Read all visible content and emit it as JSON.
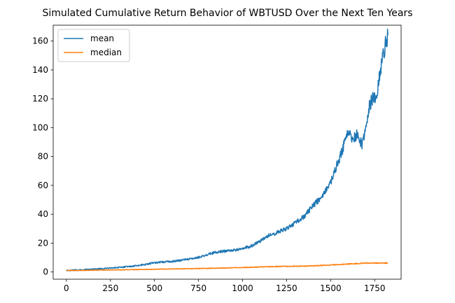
{
  "chart_data": {
    "type": "line",
    "title": "Simulated Cumulative Return Behavior of WBTUSD Over the Next Ten Years",
    "xlabel": "",
    "ylabel": "",
    "xlim": [
      -75,
      1900
    ],
    "ylim": [
      -5,
      171
    ],
    "xticks": [
      0,
      250,
      500,
      750,
      1000,
      1250,
      1500,
      1750
    ],
    "yticks": [
      0,
      20,
      40,
      60,
      80,
      100,
      120,
      140,
      160
    ],
    "grid": false,
    "legend": {
      "position": "top-left"
    },
    "series": [
      {
        "name": "mean",
        "color": "#1f77b4",
        "x": [
          0,
          50,
          100,
          150,
          200,
          250,
          300,
          350,
          400,
          450,
          500,
          550,
          600,
          650,
          700,
          750,
          800,
          850,
          900,
          950,
          1000,
          1050,
          1100,
          1150,
          1200,
          1250,
          1300,
          1350,
          1400,
          1450,
          1500,
          1530,
          1560,
          1580,
          1600,
          1620,
          1650,
          1680,
          1700,
          1720,
          1740,
          1760,
          1780,
          1800,
          1815,
          1825
        ],
        "y": [
          1.0,
          1.3,
          1.6,
          1.9,
          2.3,
          2.7,
          3.2,
          3.8,
          4.4,
          5.3,
          6.5,
          6.9,
          7.4,
          8.2,
          9.0,
          10.0,
          12.0,
          13.8,
          14.5,
          15.2,
          16.2,
          18.0,
          21.5,
          25.5,
          27.5,
          30.0,
          34.0,
          38.5,
          46.0,
          52.0,
          62.0,
          72.0,
          82.0,
          90.0,
          98.0,
          92.0,
          95.0,
          88.0,
          100.0,
          115.0,
          121.0,
          120.0,
          138.0,
          152.0,
          160.0,
          164.0
        ]
      },
      {
        "name": "median",
        "color": "#ff7f0e",
        "x": [
          0,
          100,
          200,
          300,
          400,
          500,
          600,
          700,
          800,
          900,
          1000,
          1100,
          1200,
          1300,
          1400,
          1500,
          1600,
          1700,
          1800,
          1825
        ],
        "y": [
          1.0,
          1.1,
          1.3,
          1.5,
          1.7,
          1.9,
          2.1,
          2.3,
          2.5,
          2.8,
          3.1,
          3.5,
          3.8,
          4.0,
          4.3,
          4.8,
          5.5,
          6.2,
          6.3,
          6.0
        ]
      }
    ]
  }
}
